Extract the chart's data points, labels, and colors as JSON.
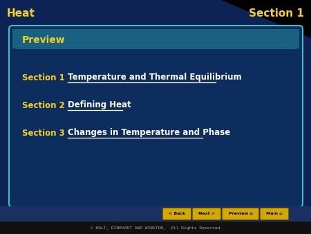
{
  "bg_color": "#0d2255",
  "header_color": "#0d2255",
  "top_bar_text_left": "Heat",
  "top_bar_text_right": "Section 1",
  "top_bar_text_color": "#f5d020",
  "card_bg_top": "#1a6080",
  "card_bg_bottom": "#0d2d5e",
  "card_border_color": "#3dbfbf",
  "card_title": "Preview",
  "card_title_color": "#f5d020",
  "sections": [
    {
      "label": "Section 1",
      "link": "Temperature and Thermal Equilibrium"
    },
    {
      "label": "Section 2",
      "link": "Defining Heat"
    },
    {
      "label": "Section 3",
      "link": "Changes in Temperature and Phase"
    }
  ],
  "section_label_color": "#f5d020",
  "section_link_color": "#ffffff",
  "footer_text": "© HOLT, RINEHART AND WINSTON,  All Rights Reserved",
  "footer_color": "#aaaaaa",
  "footer_bg": "#111111",
  "button_labels": [
    "< Back",
    "Next >",
    "Preview  n",
    "Main  n"
  ],
  "button_color": "#d4a800",
  "button_text_color": "#000000"
}
